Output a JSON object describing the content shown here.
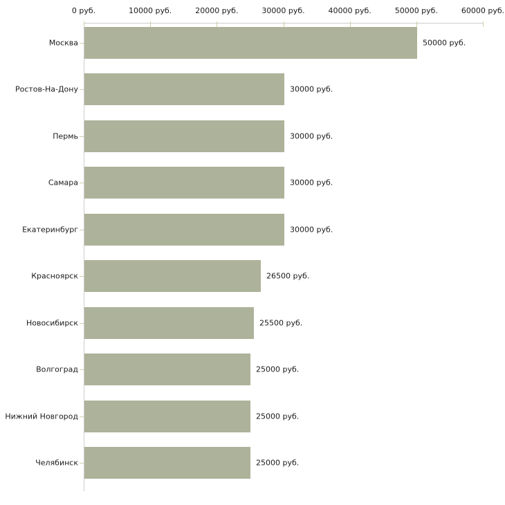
{
  "chart_data": {
    "type": "bar",
    "orientation": "horizontal",
    "title": "",
    "xlabel": "",
    "ylabel": "",
    "categories": [
      "Москва",
      "Ростов-На-Дону",
      "Пермь",
      "Самара",
      "Екатеринбург",
      "Красноярск",
      "Новосибирск",
      "Волгоград",
      "Нижний Новгород",
      "Челябинск"
    ],
    "values": [
      50000,
      30000,
      30000,
      30000,
      30000,
      26500,
      25500,
      25000,
      25000,
      25000
    ],
    "value_labels": [
      "50000 руб.",
      "30000 руб.",
      "30000 руб.",
      "30000 руб.",
      "30000 руб.",
      "26500 руб.",
      "25500 руб.",
      "25000 руб.",
      "25000 руб.",
      "25000 руб."
    ],
    "xlim": [
      0,
      60000
    ],
    "x_tick_values": [
      0,
      10000,
      20000,
      30000,
      40000,
      50000,
      60000
    ],
    "x_tick_labels": [
      "0 руб.",
      "10000 руб.",
      "20000 руб.",
      "30000 руб.",
      "40000 руб.",
      "50000 руб.",
      "60000 руб."
    ],
    "grid": false,
    "legend": false,
    "colors": {
      "bar": "#adb29a",
      "axis_line": "#cccccc",
      "tick_mark": "#d2cdab",
      "text": "#1a1a1a",
      "background": "#ffffff"
    }
  }
}
